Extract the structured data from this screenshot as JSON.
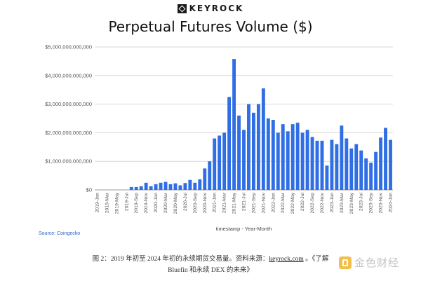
{
  "header": {
    "logo_text": "KEYROCK"
  },
  "chart_data": {
    "type": "bar",
    "title": "Perpetual Futures Volume ($)",
    "xlabel": "timestamp - Year-Month",
    "ylabel": "",
    "ylim": [
      0,
      5000000000000
    ],
    "yticks": [
      "$0",
      "$1,000,000,000,000",
      "$2,000,000,000,000",
      "$3,000,000,000,000",
      "$4,000,000,000,000",
      "$5,000,000,000,000"
    ],
    "grid": true,
    "bar_color": "#2f6ee5",
    "x_tick_labels": [
      "2019-Jan",
      "2019-Mar",
      "2019-May",
      "2019-Jul",
      "2019-Sep",
      "2019-Nov",
      "2020-Jan",
      "2020-Mar",
      "2020-May",
      "2020-Jul",
      "2020-Sep",
      "2020-Nov",
      "2021-Jan",
      "2021-Mar",
      "2021-May",
      "2021-Jul",
      "2021-Sep",
      "2021-Nov",
      "2022-Jan",
      "2022-Mar",
      "2022-May",
      "2022-Jul",
      "2022-Sep",
      "2022-Nov",
      "2023-Jan",
      "2023-Mar",
      "2023-May",
      "2023-Jul",
      "2023-Sep",
      "2023-Nov",
      "2024-Jan"
    ],
    "categories": [
      "2019-Jan",
      "2019-Feb",
      "2019-Mar",
      "2019-Apr",
      "2019-May",
      "2019-Jun",
      "2019-Jul",
      "2019-Aug",
      "2019-Sep",
      "2019-Oct",
      "2019-Nov",
      "2019-Dec",
      "2020-Jan",
      "2020-Feb",
      "2020-Mar",
      "2020-Apr",
      "2020-May",
      "2020-Jun",
      "2020-Jul",
      "2020-Aug",
      "2020-Sep",
      "2020-Oct",
      "2020-Nov",
      "2020-Dec",
      "2021-Jan",
      "2021-Feb",
      "2021-Mar",
      "2021-Apr",
      "2021-May",
      "2021-Jun",
      "2021-Jul",
      "2021-Aug",
      "2021-Sep",
      "2021-Oct",
      "2021-Nov",
      "2021-Dec",
      "2022-Jan",
      "2022-Feb",
      "2022-Mar",
      "2022-Apr",
      "2022-May",
      "2022-Jun",
      "2022-Jul",
      "2022-Aug",
      "2022-Sep",
      "2022-Oct",
      "2022-Nov",
      "2022-Dec",
      "2023-Jan",
      "2023-Feb",
      "2023-Mar",
      "2023-Apr",
      "2023-May",
      "2023-Jun",
      "2023-Jul",
      "2023-Aug",
      "2023-Sep",
      "2023-Oct",
      "2023-Nov",
      "2023-Dec",
      "2024-Jan"
    ],
    "values": [
      0,
      0,
      0,
      0,
      0,
      0,
      0,
      100000000000,
      100000000000,
      130000000000,
      250000000000,
      130000000000,
      200000000000,
      250000000000,
      280000000000,
      200000000000,
      230000000000,
      160000000000,
      240000000000,
      350000000000,
      250000000000,
      370000000000,
      750000000000,
      1000000000000,
      1800000000000,
      1900000000000,
      2000000000000,
      3250000000000,
      4580000000000,
      2600000000000,
      2100000000000,
      3000000000000,
      2700000000000,
      3000000000000,
      3550000000000,
      2500000000000,
      2450000000000,
      2000000000000,
      2300000000000,
      2050000000000,
      2300000000000,
      2350000000000,
      2000000000000,
      2100000000000,
      1850000000000,
      1720000000000,
      1720000000000,
      850000000000,
      1750000000000,
      1600000000000,
      2250000000000,
      1800000000000,
      1450000000000,
      1600000000000,
      1380000000000,
      1100000000000,
      950000000000,
      1330000000000,
      1830000000000,
      2170000000000,
      1750000000000
    ]
  },
  "source_note": "Source: Coingecko",
  "caption": {
    "line1_text": "图 2：2019 年初至 2024 年初的永续期货交易量。资料来源：",
    "line1_link": "keyrock.com",
    "line1_tail": " 。《了解",
    "line2": "Bluefin 和永续 DEX 的未来》"
  },
  "watermark": {
    "text": "金色财经"
  }
}
